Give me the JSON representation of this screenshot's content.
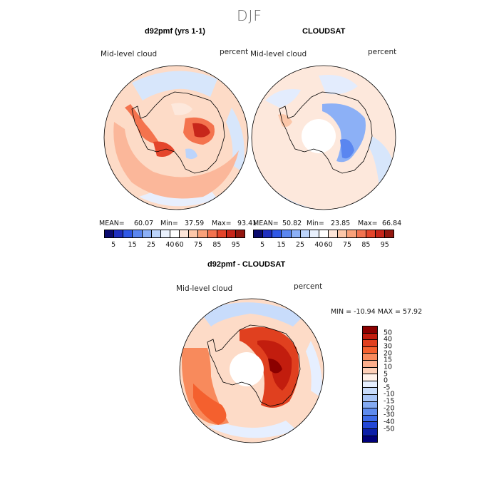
{
  "figure": {
    "season": "DJF"
  },
  "panels": [
    {
      "title": "d92pmf (yrs 1-1)",
      "field_label": "Mid-level cloud",
      "units": "percent",
      "mean_label": "MEAN=",
      "mean": "60.07",
      "min_label": "Min=",
      "min": "37.59",
      "max_label": "Max=",
      "max": "93.41",
      "base_color": "#fddbc7",
      "has_pole_hole": false
    },
    {
      "title": "CLOUDSAT",
      "field_label": "Mid-level cloud",
      "units": "percent",
      "mean_label": "MEAN=",
      "mean": "50.82",
      "min_label": "Min=",
      "min": "23.85",
      "max_label": "Max=",
      "max": "66.84",
      "base_color": "#fde8dc",
      "has_pole_hole": true
    }
  ],
  "diff_panel": {
    "title": "d92pmf - CLOUDSAT",
    "field_label": "Mid-level cloud",
    "units": "percent",
    "minmax_text": "MIN = -10.94  MAX =  57.92",
    "base_color": "#fddbc7",
    "has_pole_hole": true
  },
  "abs_colorbar": {
    "colors": [
      "#0a0a6e",
      "#1f2fbf",
      "#2f58e6",
      "#5a86f0",
      "#8cb0f6",
      "#bcd4fb",
      "#e8f0fd",
      "#ffffff",
      "#fde5d8",
      "#fcc7a9",
      "#f9a17a",
      "#f27350",
      "#e4452b",
      "#c7261a",
      "#93170f"
    ],
    "tick_labels": [
      "5",
      "15",
      "25",
      "40",
      "60",
      "75",
      "85",
      "95"
    ]
  },
  "diff_colorbar": {
    "colors": [
      "#8b0000",
      "#c21d0e",
      "#e0401f",
      "#f4602e",
      "#f88a5c",
      "#fbae8c",
      "#fdd0b8",
      "#fff2ea",
      "#e6efff",
      "#c8dcfb",
      "#a9c6f7",
      "#84aaf2",
      "#5e8bee",
      "#3e6be8",
      "#2347d6",
      "#0b1fa8",
      "#00007a"
    ],
    "tick_labels": [
      "50",
      "40",
      "30",
      "20",
      "15",
      "10",
      "5",
      "0",
      "-5",
      "-10",
      "-15",
      "-20",
      "-30",
      "-40",
      "-50"
    ]
  }
}
